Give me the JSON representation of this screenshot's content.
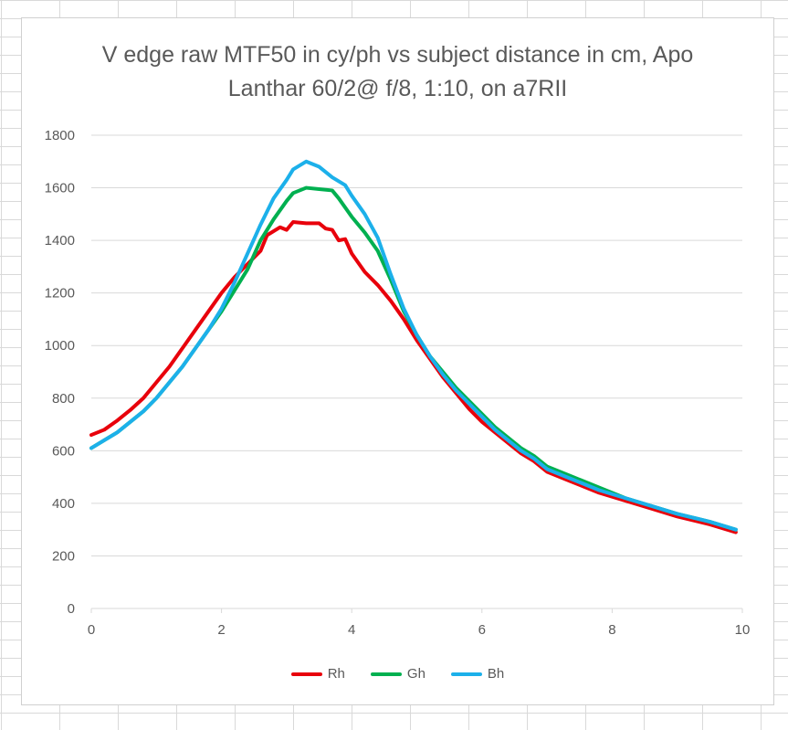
{
  "chart_data": {
    "type": "line",
    "title": "V edge raw MTF50 in cy/ph vs subject distance in cm, Apo Lanthar 60/2@ f/8, 1:10, on a7RII",
    "xlabel": "",
    "ylabel": "",
    "xlim": [
      0,
      10
    ],
    "ylim": [
      0,
      1800
    ],
    "x_ticks": [
      0,
      2,
      4,
      6,
      8,
      10
    ],
    "y_ticks": [
      0,
      200,
      400,
      600,
      800,
      1000,
      1200,
      1400,
      1600,
      1800
    ],
    "grid": "horizontal",
    "legend_position": "bottom",
    "series": [
      {
        "name": "Rh",
        "color": "#e8000b",
        "points": [
          [
            0,
            660
          ],
          [
            0.2,
            680
          ],
          [
            0.4,
            715
          ],
          [
            0.6,
            755
          ],
          [
            0.8,
            800
          ],
          [
            1.0,
            860
          ],
          [
            1.2,
            920
          ],
          [
            1.4,
            990
          ],
          [
            1.6,
            1060
          ],
          [
            1.8,
            1130
          ],
          [
            2.0,
            1200
          ],
          [
            2.2,
            1260
          ],
          [
            2.4,
            1310
          ],
          [
            2.6,
            1360
          ],
          [
            2.7,
            1420
          ],
          [
            2.9,
            1450
          ],
          [
            3.0,
            1440
          ],
          [
            3.1,
            1470
          ],
          [
            3.3,
            1465
          ],
          [
            3.5,
            1465
          ],
          [
            3.6,
            1445
          ],
          [
            3.7,
            1440
          ],
          [
            3.8,
            1400
          ],
          [
            3.9,
            1405
          ],
          [
            4.0,
            1350
          ],
          [
            4.2,
            1280
          ],
          [
            4.4,
            1230
          ],
          [
            4.6,
            1170
          ],
          [
            4.8,
            1100
          ],
          [
            5.0,
            1020
          ],
          [
            5.2,
            950
          ],
          [
            5.4,
            880
          ],
          [
            5.6,
            820
          ],
          [
            5.8,
            760
          ],
          [
            6.0,
            710
          ],
          [
            6.2,
            670
          ],
          [
            6.4,
            630
          ],
          [
            6.6,
            590
          ],
          [
            6.8,
            560
          ],
          [
            7.0,
            520
          ],
          [
            7.4,
            480
          ],
          [
            7.8,
            440
          ],
          [
            8.2,
            410
          ],
          [
            8.6,
            380
          ],
          [
            9.0,
            350
          ],
          [
            9.5,
            320
          ],
          [
            9.9,
            290
          ]
        ]
      },
      {
        "name": "Gh",
        "color": "#00b050",
        "points": [
          [
            0,
            610
          ],
          [
            0.2,
            640
          ],
          [
            0.4,
            670
          ],
          [
            0.6,
            710
          ],
          [
            0.8,
            750
          ],
          [
            1.0,
            800
          ],
          [
            1.2,
            860
          ],
          [
            1.4,
            920
          ],
          [
            1.6,
            990
          ],
          [
            1.8,
            1060
          ],
          [
            2.0,
            1130
          ],
          [
            2.2,
            1210
          ],
          [
            2.4,
            1290
          ],
          [
            2.6,
            1400
          ],
          [
            2.8,
            1480
          ],
          [
            3.0,
            1550
          ],
          [
            3.1,
            1580
          ],
          [
            3.3,
            1600
          ],
          [
            3.5,
            1595
          ],
          [
            3.7,
            1590
          ],
          [
            3.8,
            1560
          ],
          [
            4.0,
            1490
          ],
          [
            4.2,
            1430
          ],
          [
            4.4,
            1360
          ],
          [
            4.6,
            1250
          ],
          [
            4.8,
            1130
          ],
          [
            5.0,
            1040
          ],
          [
            5.2,
            960
          ],
          [
            5.4,
            900
          ],
          [
            5.6,
            840
          ],
          [
            5.8,
            790
          ],
          [
            6.0,
            740
          ],
          [
            6.2,
            690
          ],
          [
            6.4,
            650
          ],
          [
            6.6,
            610
          ],
          [
            6.8,
            580
          ],
          [
            7.0,
            540
          ],
          [
            7.4,
            500
          ],
          [
            7.8,
            460
          ],
          [
            8.2,
            420
          ],
          [
            8.6,
            390
          ],
          [
            9.0,
            360
          ],
          [
            9.5,
            330
          ],
          [
            9.9,
            300
          ]
        ]
      },
      {
        "name": "Bh",
        "color": "#1cb0ea",
        "points": [
          [
            0,
            610
          ],
          [
            0.2,
            640
          ],
          [
            0.4,
            670
          ],
          [
            0.6,
            710
          ],
          [
            0.8,
            750
          ],
          [
            1.0,
            800
          ],
          [
            1.2,
            860
          ],
          [
            1.4,
            920
          ],
          [
            1.6,
            990
          ],
          [
            1.8,
            1060
          ],
          [
            2.0,
            1140
          ],
          [
            2.2,
            1240
          ],
          [
            2.4,
            1350
          ],
          [
            2.6,
            1460
          ],
          [
            2.8,
            1560
          ],
          [
            3.0,
            1630
          ],
          [
            3.1,
            1670
          ],
          [
            3.3,
            1700
          ],
          [
            3.5,
            1680
          ],
          [
            3.7,
            1640
          ],
          [
            3.9,
            1610
          ],
          [
            4.0,
            1570
          ],
          [
            4.2,
            1500
          ],
          [
            4.4,
            1410
          ],
          [
            4.6,
            1270
          ],
          [
            4.8,
            1140
          ],
          [
            5.0,
            1040
          ],
          [
            5.2,
            960
          ],
          [
            5.4,
            890
          ],
          [
            5.6,
            830
          ],
          [
            5.8,
            780
          ],
          [
            6.0,
            730
          ],
          [
            6.2,
            680
          ],
          [
            6.4,
            640
          ],
          [
            6.6,
            600
          ],
          [
            6.8,
            570
          ],
          [
            7.0,
            530
          ],
          [
            7.4,
            490
          ],
          [
            7.8,
            450
          ],
          [
            8.2,
            420
          ],
          [
            8.6,
            390
          ],
          [
            9.0,
            360
          ],
          [
            9.5,
            330
          ],
          [
            9.9,
            300
          ]
        ]
      }
    ]
  },
  "colors": {
    "gridline": "#d9d9d9",
    "text": "#595959"
  }
}
